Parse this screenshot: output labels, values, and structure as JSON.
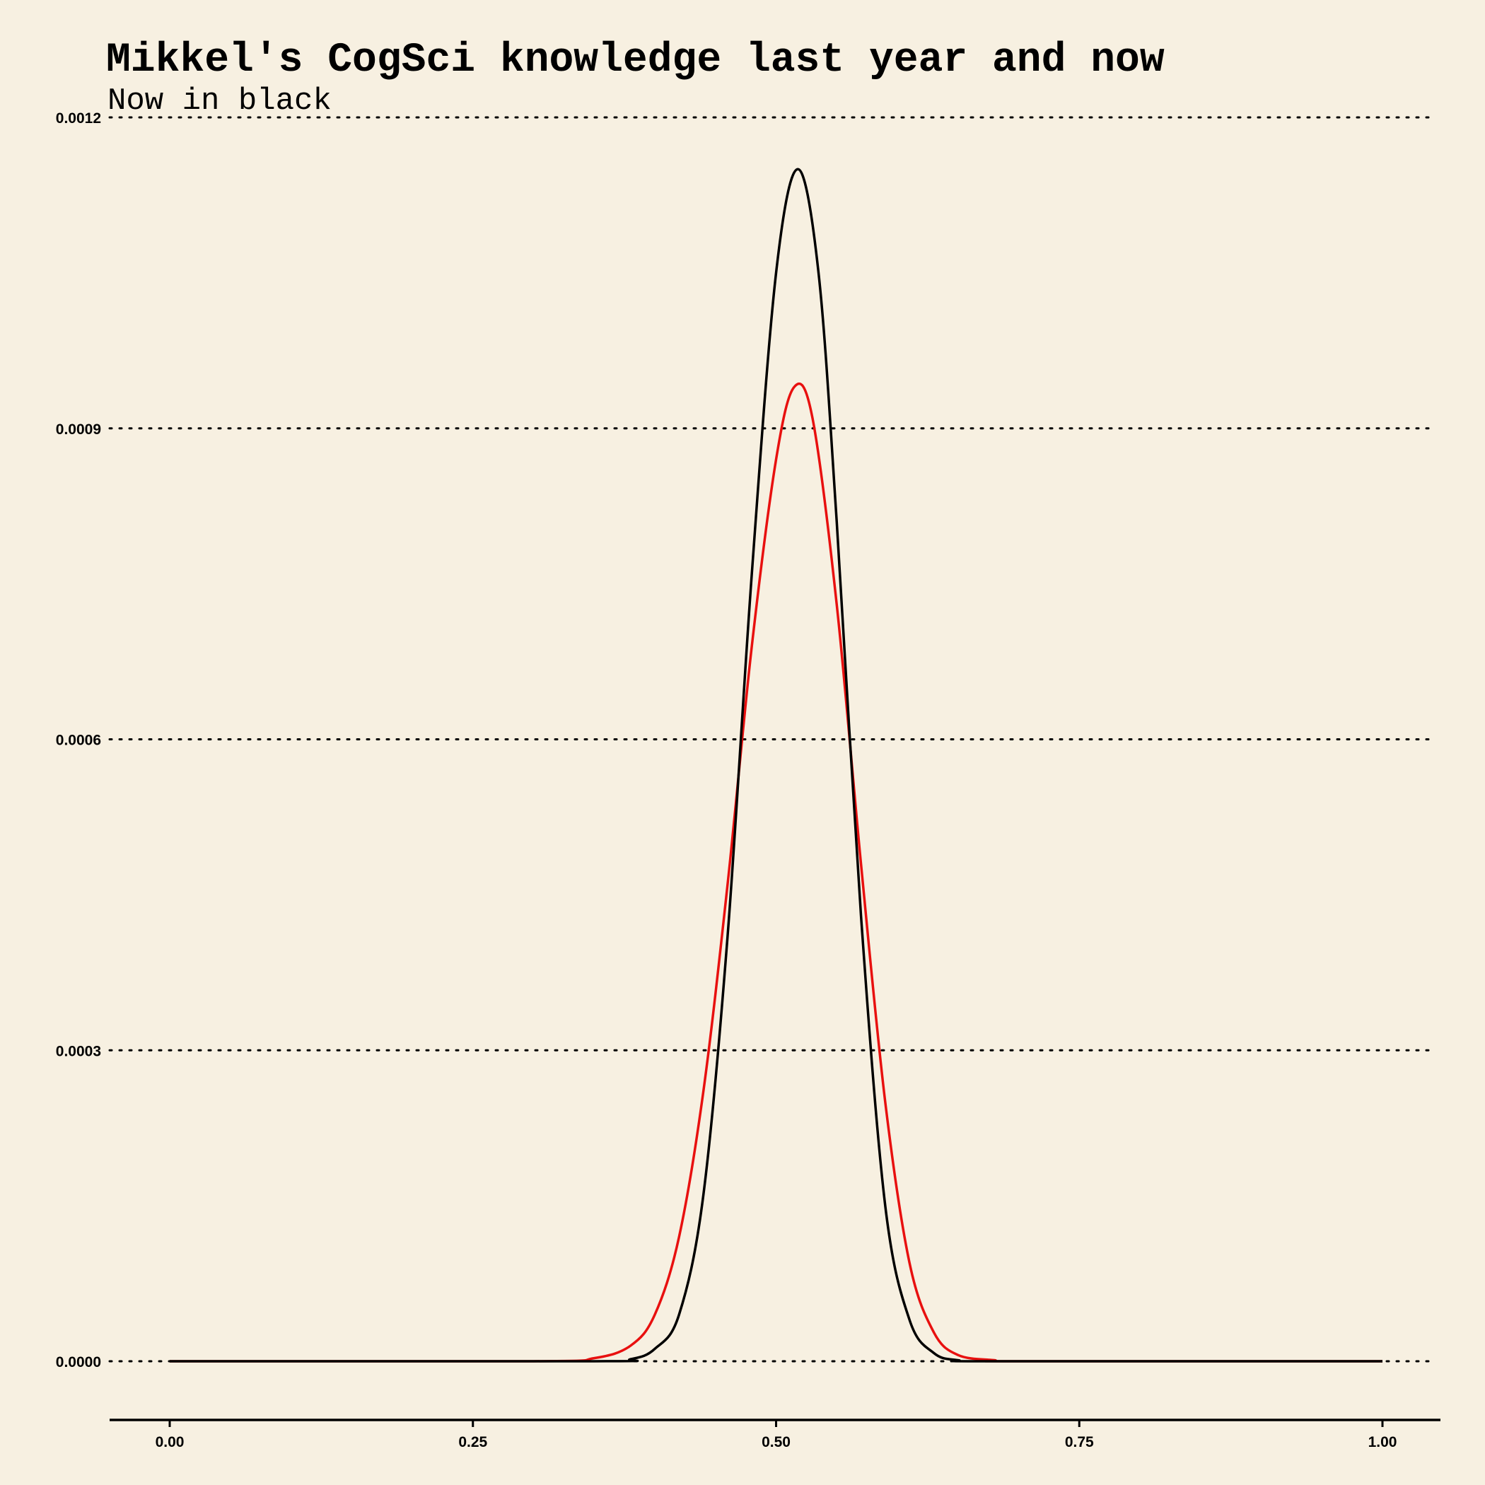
{
  "chart_data": {
    "type": "line",
    "title": "Mikkel's CogSci knowledge last year and now",
    "subtitle": "Now in black",
    "xlabel": "",
    "ylabel": "",
    "xlim": [
      0,
      1
    ],
    "ylim": [
      0,
      0.0012
    ],
    "grid": "horizontal dotted",
    "legend": "none",
    "x_ticks": [
      "0.00",
      "0.25",
      "0.50",
      "0.75",
      "1.00"
    ],
    "x_tick_values": [
      0,
      0.25,
      0.5,
      0.75,
      1.0
    ],
    "y_ticks": [
      "0.0000",
      "0.0003",
      "0.0006",
      "0.0009",
      "0.0012"
    ],
    "y_tick_values": [
      0,
      0.0003,
      0.0006,
      0.0009,
      0.0012
    ],
    "series": [
      {
        "color": "#e8100f",
        "x": [
          0.0,
          0.3,
          0.35,
          0.38,
          0.4,
          0.42,
          0.44,
          0.46,
          0.48,
          0.5,
          0.515,
          0.53,
          0.55,
          0.57,
          0.59,
          0.61,
          0.63,
          0.65,
          0.68,
          0.7,
          1.0
        ],
        "y": [
          0.0,
          0.0,
          3e-06,
          1.5e-05,
          4.5e-05,
          0.00012,
          0.00026,
          0.00046,
          0.00069,
          0.00087,
          0.00094,
          0.00091,
          0.00073,
          0.00048,
          0.00025,
          9.5e-05,
          2.8e-05,
          6e-06,
          1e-06,
          0.0,
          0.0
        ]
      },
      {
        "color": "#000000",
        "x": [
          0.0,
          0.35,
          0.38,
          0.4,
          0.42,
          0.44,
          0.46,
          0.48,
          0.5,
          0.518,
          0.535,
          0.55,
          0.57,
          0.59,
          0.61,
          0.63,
          0.65,
          0.68,
          1.0
        ],
        "y": [
          0.0,
          0.0,
          2e-06,
          1.2e-05,
          4.5e-05,
          0.00016,
          0.00041,
          0.00076,
          0.00105,
          0.00115,
          0.00105,
          0.00081,
          0.00043,
          0.00015,
          4e-05,
          8e-06,
          1e-06,
          0.0,
          0.0
        ]
      }
    ]
  }
}
